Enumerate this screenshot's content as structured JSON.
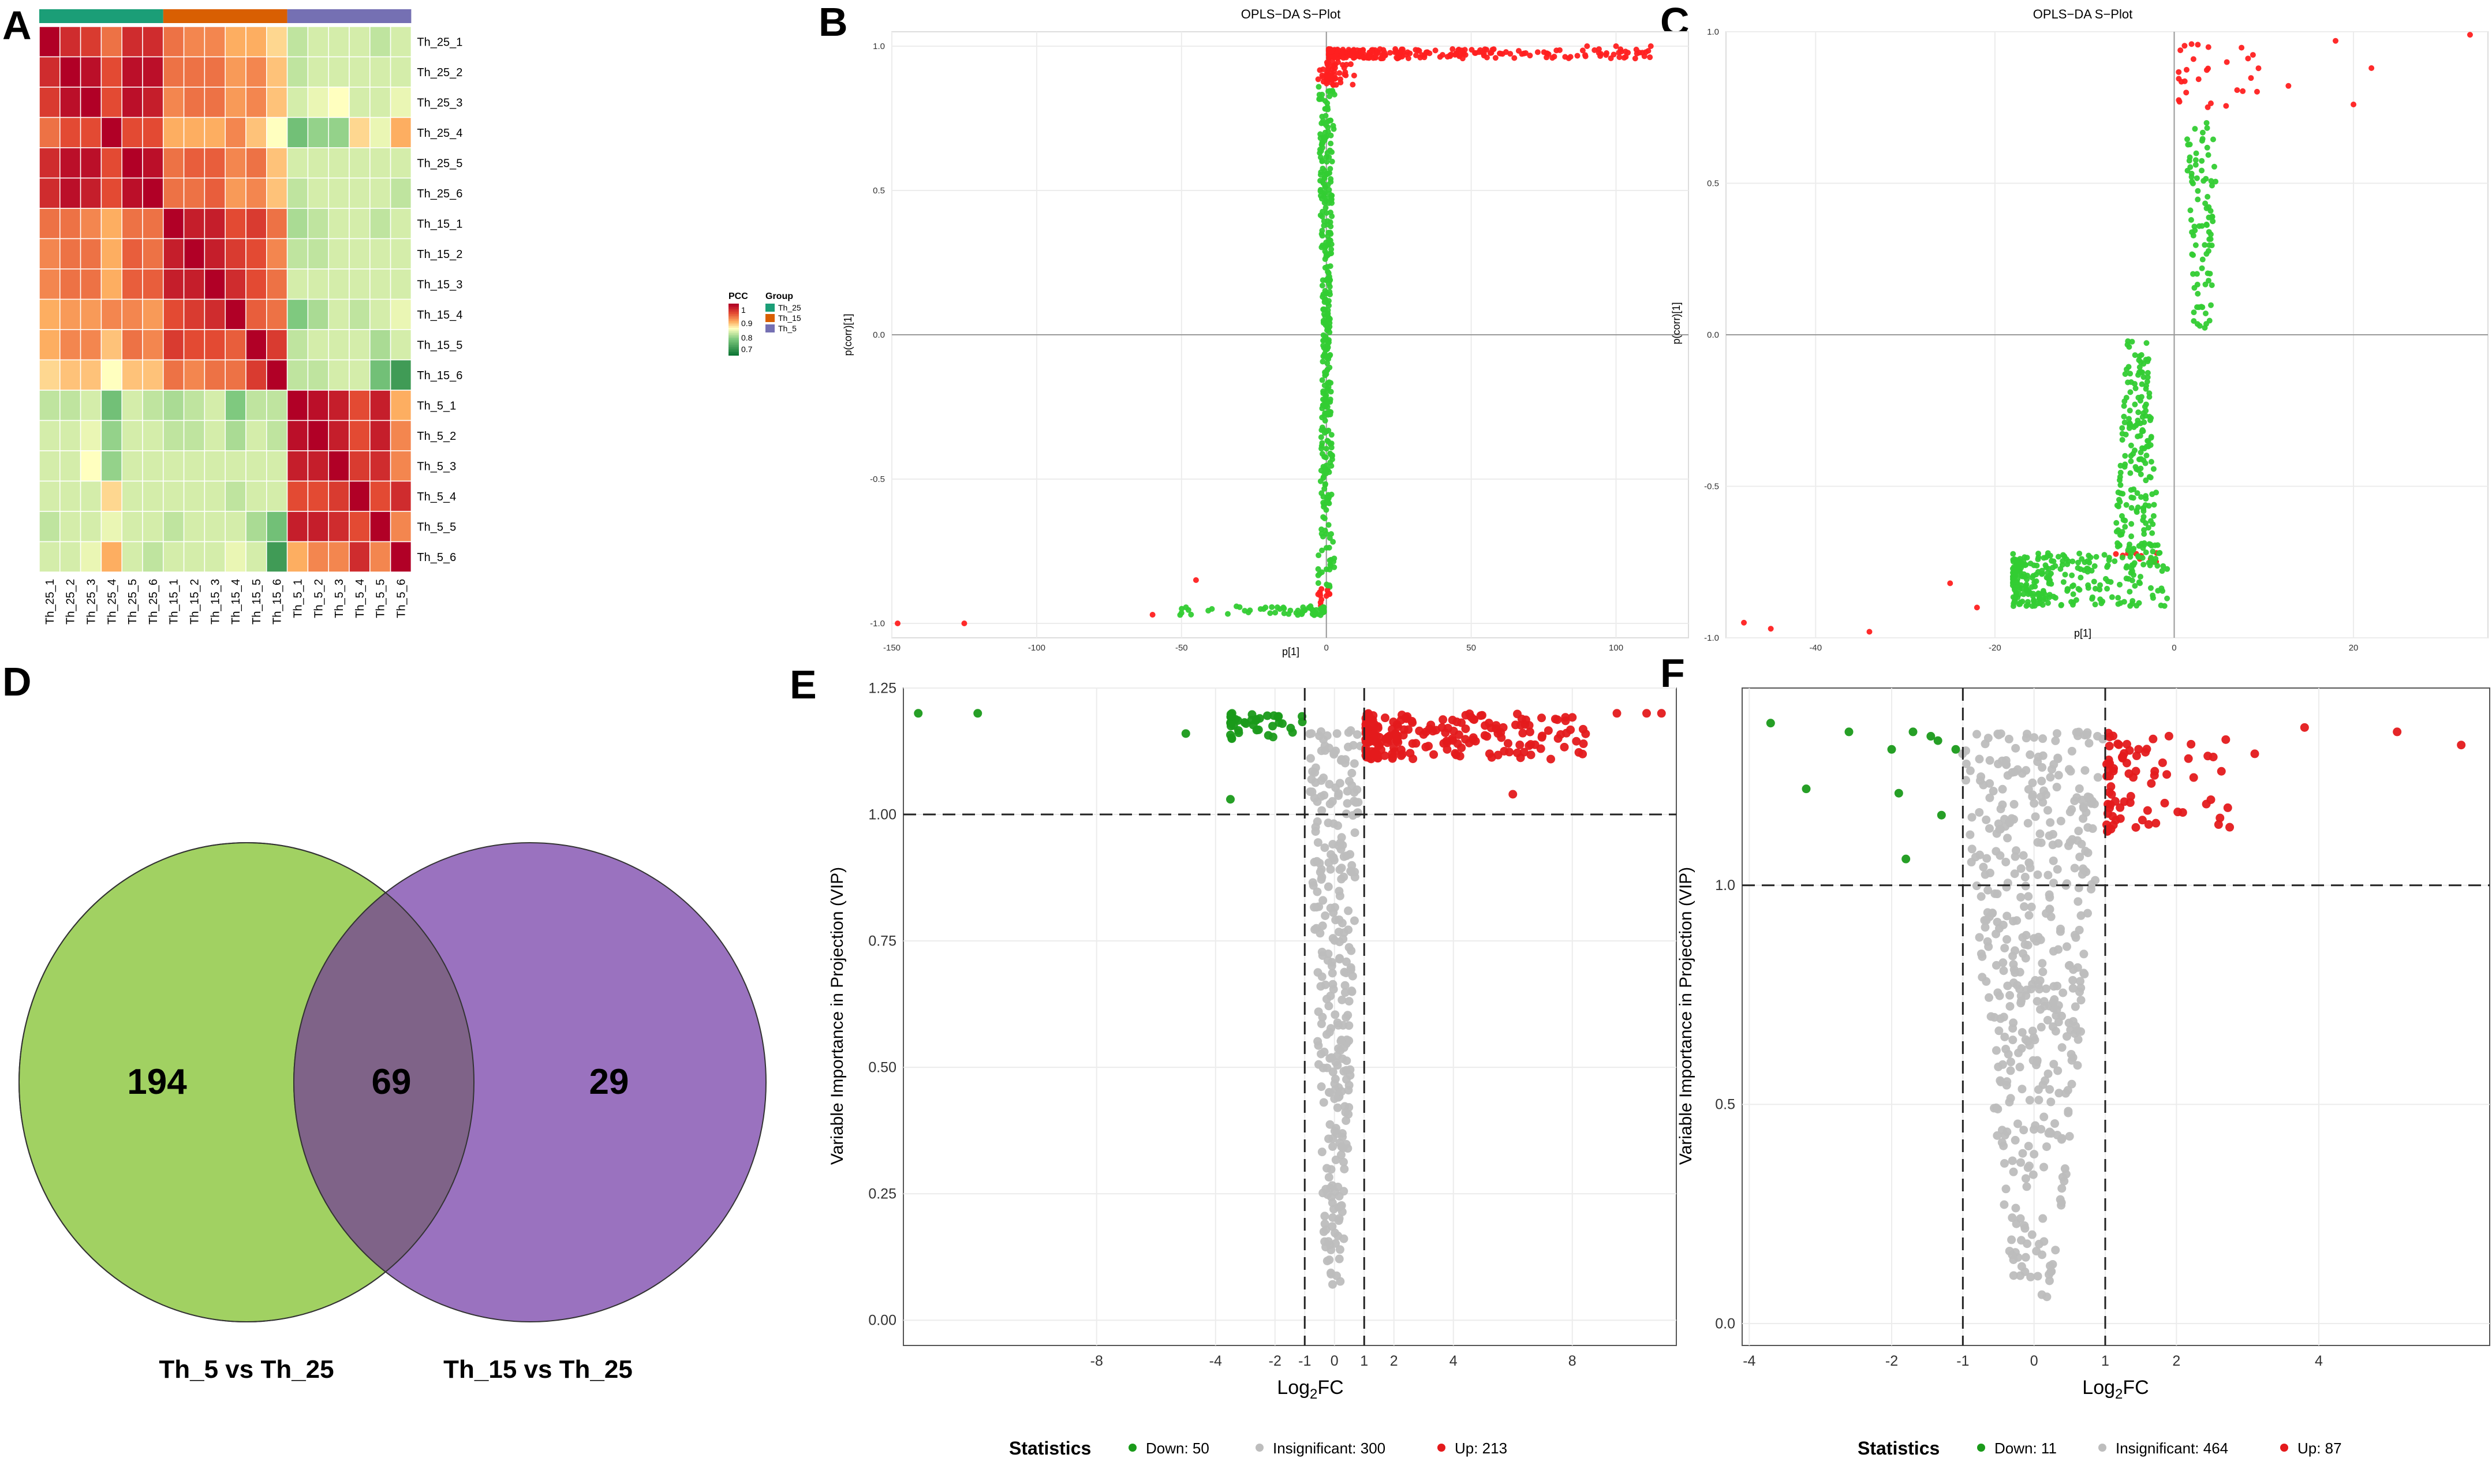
{
  "panel_labels": {
    "A": "A",
    "B": "B",
    "C": "C",
    "D": "D",
    "E": "E",
    "F": "F"
  },
  "colors": {
    "group_Th_25": "#1b9e77",
    "group_Th_15": "#d95f02",
    "group_Th_5": "#7570b3",
    "up": "#e41a1c",
    "down": "#1a9a1a",
    "insig": "#bdbdbd",
    "splot_up": "#ff2020",
    "splot_down": "#33cc33",
    "venn_left": "#a1d162",
    "venn_right": "#9a72bf",
    "venn_overlap": "#7f6388"
  },
  "chart_data": [
    {
      "panel": "A",
      "type": "heatmap",
      "title": "",
      "samples": [
        "Th_25_1",
        "Th_25_2",
        "Th_25_3",
        "Th_25_4",
        "Th_25_5",
        "Th_25_6",
        "Th_15_1",
        "Th_15_2",
        "Th_15_3",
        "Th_15_4",
        "Th_15_5",
        "Th_15_6",
        "Th_5_1",
        "Th_5_2",
        "Th_5_3",
        "Th_5_4",
        "Th_5_5",
        "Th_5_6"
      ],
      "matrix": [
        [
          1.0,
          0.97,
          0.96,
          0.93,
          0.97,
          0.97,
          0.93,
          0.92,
          0.92,
          0.9,
          0.9,
          0.88,
          0.83,
          0.84,
          0.84,
          0.84,
          0.83,
          0.84
        ],
        [
          0.97,
          1.0,
          0.99,
          0.95,
          0.99,
          0.99,
          0.93,
          0.93,
          0.93,
          0.91,
          0.92,
          0.89,
          0.83,
          0.84,
          0.84,
          0.84,
          0.84,
          0.84
        ],
        [
          0.96,
          0.99,
          1.0,
          0.95,
          0.99,
          0.98,
          0.92,
          0.93,
          0.93,
          0.91,
          0.92,
          0.89,
          0.84,
          0.85,
          0.86,
          0.84,
          0.84,
          0.85
        ],
        [
          0.93,
          0.95,
          0.95,
          1.0,
          0.95,
          0.95,
          0.9,
          0.9,
          0.9,
          0.92,
          0.89,
          0.86,
          0.79,
          0.81,
          0.81,
          0.88,
          0.85,
          0.9
        ],
        [
          0.97,
          0.99,
          0.99,
          0.95,
          1.0,
          0.99,
          0.93,
          0.94,
          0.94,
          0.92,
          0.93,
          0.89,
          0.84,
          0.84,
          0.84,
          0.84,
          0.84,
          0.84
        ],
        [
          0.97,
          0.99,
          0.98,
          0.95,
          0.99,
          1.0,
          0.93,
          0.93,
          0.94,
          0.91,
          0.92,
          0.89,
          0.83,
          0.84,
          0.84,
          0.84,
          0.84,
          0.83
        ],
        [
          0.93,
          0.93,
          0.92,
          0.9,
          0.93,
          0.93,
          1.0,
          0.98,
          0.98,
          0.95,
          0.96,
          0.93,
          0.82,
          0.83,
          0.84,
          0.84,
          0.83,
          0.84
        ],
        [
          0.92,
          0.93,
          0.93,
          0.9,
          0.94,
          0.93,
          0.98,
          1.0,
          0.98,
          0.96,
          0.95,
          0.92,
          0.83,
          0.83,
          0.84,
          0.84,
          0.84,
          0.84
        ],
        [
          0.92,
          0.93,
          0.93,
          0.9,
          0.94,
          0.94,
          0.98,
          0.98,
          1.0,
          0.97,
          0.95,
          0.93,
          0.84,
          0.84,
          0.84,
          0.84,
          0.84,
          0.84
        ],
        [
          0.9,
          0.91,
          0.91,
          0.92,
          0.92,
          0.91,
          0.95,
          0.96,
          0.97,
          1.0,
          0.94,
          0.93,
          0.8,
          0.82,
          0.84,
          0.83,
          0.84,
          0.85
        ],
        [
          0.9,
          0.92,
          0.92,
          0.89,
          0.93,
          0.92,
          0.96,
          0.95,
          0.95,
          0.94,
          1.0,
          0.96,
          0.83,
          0.84,
          0.84,
          0.84,
          0.82,
          0.84
        ],
        [
          0.88,
          0.89,
          0.89,
          0.86,
          0.89,
          0.89,
          0.93,
          0.92,
          0.93,
          0.93,
          0.96,
          1.0,
          0.83,
          0.83,
          0.84,
          0.84,
          0.79,
          0.75
        ],
        [
          0.83,
          0.83,
          0.84,
          0.79,
          0.84,
          0.83,
          0.82,
          0.83,
          0.84,
          0.8,
          0.83,
          0.83,
          1.0,
          0.99,
          0.98,
          0.95,
          0.98,
          0.9
        ],
        [
          0.84,
          0.84,
          0.85,
          0.81,
          0.84,
          0.84,
          0.83,
          0.83,
          0.84,
          0.82,
          0.84,
          0.83,
          0.99,
          1.0,
          0.98,
          0.95,
          0.98,
          0.92
        ],
        [
          0.84,
          0.84,
          0.86,
          0.81,
          0.84,
          0.84,
          0.84,
          0.84,
          0.84,
          0.84,
          0.84,
          0.84,
          0.98,
          0.98,
          1.0,
          0.96,
          0.97,
          0.92
        ],
        [
          0.84,
          0.84,
          0.84,
          0.88,
          0.84,
          0.84,
          0.84,
          0.84,
          0.84,
          0.83,
          0.84,
          0.84,
          0.95,
          0.95,
          0.96,
          1.0,
          0.95,
          0.97
        ],
        [
          0.83,
          0.84,
          0.84,
          0.85,
          0.84,
          0.84,
          0.83,
          0.84,
          0.84,
          0.84,
          0.82,
          0.79,
          0.98,
          0.98,
          0.97,
          0.95,
          1.0,
          0.92
        ],
        [
          0.84,
          0.84,
          0.85,
          0.9,
          0.84,
          0.83,
          0.84,
          0.84,
          0.84,
          0.85,
          0.84,
          0.75,
          0.9,
          0.92,
          0.92,
          0.97,
          0.92,
          1.0
        ]
      ],
      "legend_pcc": {
        "title": "PCC",
        "ticks": [
          "1",
          "0.9",
          "0.8",
          "0.7"
        ],
        "range": [
          0.7,
          1.0
        ]
      },
      "legend_group": {
        "title": "Group",
        "entries": [
          "Th_25",
          "Th_15",
          "Th_5"
        ]
      }
    },
    {
      "panel": "B",
      "type": "scatter",
      "title": "OPLS−DA S−Plot",
      "xlabel": "p[1]",
      "ylabel": "p(corr)[1]",
      "xlim": [
        -150,
        125
      ],
      "ylim": [
        -1.05,
        1.05
      ],
      "xticks": [
        {
          "v": -150,
          "t": "-150"
        },
        {
          "v": -100,
          "t": "-100"
        },
        {
          "v": -50,
          "t": "-50"
        },
        {
          "v": 0,
          "t": "0"
        },
        {
          "v": 50,
          "t": "50"
        },
        {
          "v": 100,
          "t": "100"
        }
      ],
      "yticks": [
        {
          "v": -1,
          "t": "-1.0"
        },
        {
          "v": -0.5,
          "t": "-0.5"
        },
        {
          "v": 0,
          "t": "0.0"
        },
        {
          "v": 0.5,
          "t": "0.5"
        },
        {
          "v": 1,
          "t": "1.0"
        }
      ],
      "generated": {
        "seed": 11,
        "up": [
          [
            0.8,
            112,
            0.94,
            0.99,
            260
          ],
          [
            0.12,
            10,
            0.82,
            0.95,
            40
          ]
        ],
        "down": [
          [
            -0.8,
            -55,
            -0.99,
            -0.94,
            60
          ]
        ],
        "mid": [
          [
            -4,
            4,
            -0.94,
            0.92,
            380
          ]
        ]
      },
      "points_explicit": [
        {
          "x": -148,
          "y": -1.0,
          "s": "up"
        },
        {
          "x": -125,
          "y": -1.0,
          "s": "up"
        },
        {
          "x": -60,
          "y": -0.97,
          "s": "up"
        },
        {
          "x": -45,
          "y": -0.85,
          "s": "up"
        },
        {
          "x": 100,
          "y": 1.0,
          "s": "up"
        },
        {
          "x": 112,
          "y": 1.0,
          "s": "up"
        },
        {
          "x": 90,
          "y": 1.0,
          "s": "up"
        }
      ]
    },
    {
      "panel": "C",
      "type": "scatter",
      "title": "OPLS−DA S−Plot",
      "xlabel": "p[1]",
      "ylabel": "p(corr)[1]",
      "xlim": [
        -50,
        35
      ],
      "ylim": [
        -1.0,
        1.0
      ],
      "xticks": [
        {
          "v": -40,
          "t": "-40"
        },
        {
          "v": -20,
          "t": "-20"
        },
        {
          "v": 0,
          "t": "0"
        },
        {
          "v": 20,
          "t": "20"
        }
      ],
      "yticks": [
        {
          "v": -1,
          "t": "-1.0"
        },
        {
          "v": -0.5,
          "t": "-0.5"
        },
        {
          "v": 0,
          "t": "0.0"
        },
        {
          "v": 0.5,
          "t": "0.5"
        },
        {
          "v": 1,
          "t": "1.0"
        }
      ],
      "generated": {
        "seed": 23,
        "up": [
          [
            0.5,
            14,
            0.62,
            0.97,
            30
          ]
        ],
        "down": [
          [
            -18,
            -0.5,
            -0.99,
            -0.72,
            280
          ]
        ],
        "mid": [
          [
            -8,
            -0.3,
            -0.75,
            -0.02,
            200
          ],
          [
            0.2,
            6,
            0.02,
            0.7,
            90
          ]
        ]
      },
      "points_explicit": [
        {
          "x": -48,
          "y": -0.95,
          "s": "up"
        },
        {
          "x": -45,
          "y": -0.97,
          "s": "up"
        },
        {
          "x": -34,
          "y": -0.98,
          "s": "up"
        },
        {
          "x": -25,
          "y": -0.82,
          "s": "up"
        },
        {
          "x": -22,
          "y": -0.9,
          "s": "up"
        },
        {
          "x": 33,
          "y": 0.99,
          "s": "up"
        },
        {
          "x": 20,
          "y": 0.76,
          "s": "up"
        },
        {
          "x": 22,
          "y": 0.88,
          "s": "up"
        },
        {
          "x": 18,
          "y": 0.97,
          "s": "up"
        }
      ]
    },
    {
      "panel": "D",
      "type": "venn",
      "sets": [
        "Th_5 vs Th_25",
        "Th_15 vs Th_25"
      ],
      "counts": {
        "left_only": "194",
        "overlap": "69",
        "right_only": "29"
      }
    },
    {
      "panel": "E",
      "type": "scatter",
      "title": "",
      "xlabel": "Log2FC",
      "ylabel": "Variable Importance in Projection (VIP)",
      "xlim": [
        -14.5,
        11.5
      ],
      "ylim": [
        -0.05,
        1.25
      ],
      "xticks": [
        {
          "v": -8,
          "t": "-8"
        },
        {
          "v": -4,
          "t": "-4"
        },
        {
          "v": -2,
          "t": "-2"
        },
        {
          "v": -1,
          "t": "-1"
        },
        {
          "v": 0,
          "t": "0"
        },
        {
          "v": 1,
          "t": "1"
        },
        {
          "v": 2,
          "t": "2"
        },
        {
          "v": 4,
          "t": "4"
        },
        {
          "v": 8,
          "t": "8"
        }
      ],
      "yticks": [
        {
          "v": 0,
          "t": "0.00"
        },
        {
          "v": 0.25,
          "t": "0.25"
        },
        {
          "v": 0.5,
          "t": "0.50"
        },
        {
          "v": 0.75,
          "t": "0.75"
        },
        {
          "v": 1,
          "t": "1.00"
        },
        {
          "v": 1.25,
          "t": "1.25"
        }
      ],
      "thresholds": {
        "vip": 1.0,
        "fc": [
          -1,
          1
        ]
      },
      "generated": {
        "seed": 37,
        "up": [
          [
            1.05,
            8.5,
            1.06,
            1.2,
            200
          ]
        ],
        "down": [
          [
            -3.5,
            -1.05,
            1.12,
            1.2,
            42
          ]
        ],
        "insig": [
          [
            -0.9,
            0.9,
            0.02,
            1.18,
            290
          ]
        ]
      },
      "points_explicit": [
        {
          "x": -14,
          "y": 1.2,
          "s": "down"
        },
        {
          "x": -12,
          "y": 1.2,
          "s": "down"
        },
        {
          "x": -5,
          "y": 1.16,
          "s": "down"
        },
        {
          "x": -3.5,
          "y": 1.03,
          "s": "down"
        },
        {
          "x": 9.5,
          "y": 1.2,
          "s": "up"
        },
        {
          "x": 10.5,
          "y": 1.2,
          "s": "up"
        },
        {
          "x": 11,
          "y": 1.2,
          "s": "up"
        },
        {
          "x": 6,
          "y": 1.04,
          "s": "up"
        }
      ],
      "legend": {
        "title": "Statistics",
        "entries": [
          {
            "label": "Down: 50",
            "s": "down"
          },
          {
            "label": "Insignificant: 300",
            "s": "insig"
          },
          {
            "label": "Up: 213",
            "s": "up"
          }
        ]
      }
    },
    {
      "panel": "F",
      "type": "scatter",
      "title": "",
      "xlabel": "Log2FC",
      "ylabel": "Variable Importance in Projection (VIP)",
      "xlim": [
        -4.1,
        6.4
      ],
      "ylim": [
        -0.05,
        1.45
      ],
      "xticks": [
        {
          "v": -4,
          "t": "-4"
        },
        {
          "v": -2,
          "t": "-2"
        },
        {
          "v": -1,
          "t": "-1"
        },
        {
          "v": 0,
          "t": "0"
        },
        {
          "v": 1,
          "t": "1"
        },
        {
          "v": 2,
          "t": "2"
        },
        {
          "v": 4,
          "t": "4"
        }
      ],
      "yticks": [
        {
          "v": 0,
          "t": "0.0"
        },
        {
          "v": 0.5,
          "t": "0.5"
        },
        {
          "v": 1,
          "t": "1.0"
        }
      ],
      "thresholds": {
        "vip": 1.0,
        "fc": [
          -1,
          1
        ]
      },
      "generated": {
        "seed": 51,
        "up": [
          [
            1.02,
            2.8,
            1.0,
            1.35,
            78
          ]
        ],
        "insig": [
          [
            -0.95,
            0.95,
            0.02,
            1.35,
            450
          ]
        ]
      },
      "points_explicit": [
        {
          "x": -3.7,
          "y": 1.37,
          "s": "down"
        },
        {
          "x": -3.2,
          "y": 1.22,
          "s": "down"
        },
        {
          "x": -2.6,
          "y": 1.35,
          "s": "down"
        },
        {
          "x": -2.0,
          "y": 1.31,
          "s": "down"
        },
        {
          "x": -1.9,
          "y": 1.21,
          "s": "down"
        },
        {
          "x": -1.8,
          "y": 1.06,
          "s": "down"
        },
        {
          "x": -1.7,
          "y": 1.35,
          "s": "down"
        },
        {
          "x": -1.45,
          "y": 1.34,
          "s": "down"
        },
        {
          "x": -1.35,
          "y": 1.33,
          "s": "down"
        },
        {
          "x": -1.3,
          "y": 1.16,
          "s": "down"
        },
        {
          "x": -1.1,
          "y": 1.31,
          "s": "down"
        },
        {
          "x": 3.8,
          "y": 1.36,
          "s": "up"
        },
        {
          "x": 5.1,
          "y": 1.35,
          "s": "up"
        },
        {
          "x": 6.0,
          "y": 1.32,
          "s": "up"
        },
        {
          "x": 3.1,
          "y": 1.3,
          "s": "up"
        }
      ],
      "legend": {
        "title": "Statistics",
        "entries": [
          {
            "label": "Down: 11",
            "s": "down"
          },
          {
            "label": "Insignificant: 464",
            "s": "insig"
          },
          {
            "label": "Up: 87",
            "s": "up"
          }
        ]
      }
    }
  ]
}
